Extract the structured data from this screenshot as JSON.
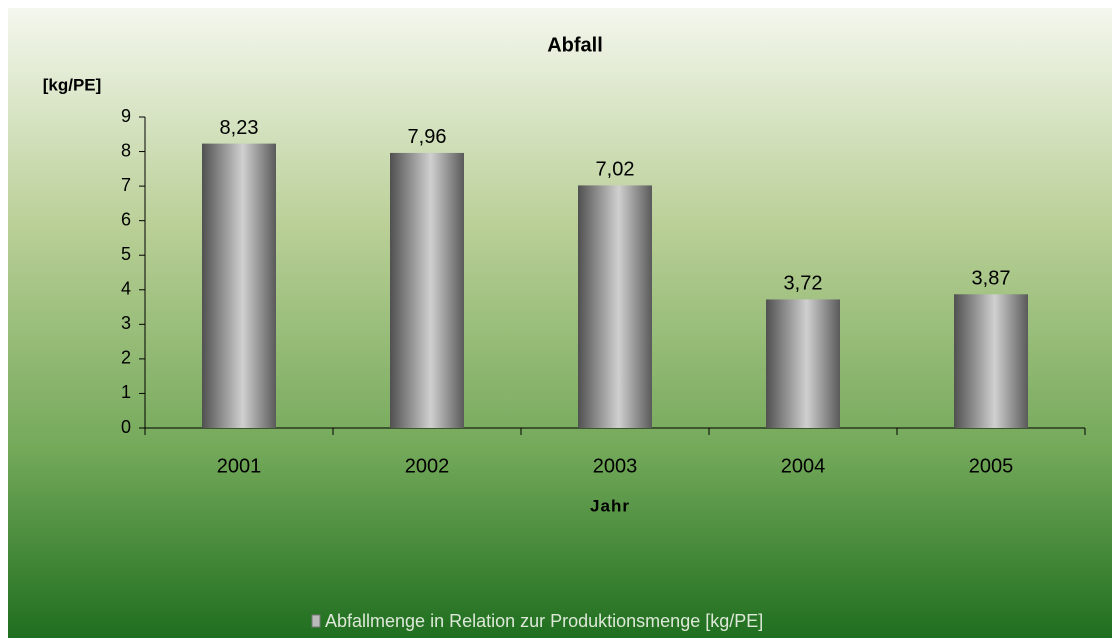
{
  "chart_data": {
    "type": "bar",
    "title": "Abfall",
    "y_label": "[kg/PE]",
    "x_label": "Jahr",
    "categories": [
      "2001",
      "2002",
      "2003",
      "2004",
      "2005"
    ],
    "series": [
      {
        "name": "Abfallmenge in Relation zur Produktionsmenge [kg/PE]",
        "color": "#a0a0a0",
        "values": [
          8.23,
          7.96,
          7.02,
          3.72,
          3.87
        ],
        "value_labels": [
          "8,23",
          "7,96",
          "7,02",
          "3,72",
          "3,87"
        ]
      }
    ],
    "ylim": [
      0,
      9
    ],
    "yticks": [
      0,
      1,
      2,
      3,
      4,
      5,
      6,
      7,
      8,
      9
    ],
    "grid": false,
    "legend": "bottom"
  }
}
